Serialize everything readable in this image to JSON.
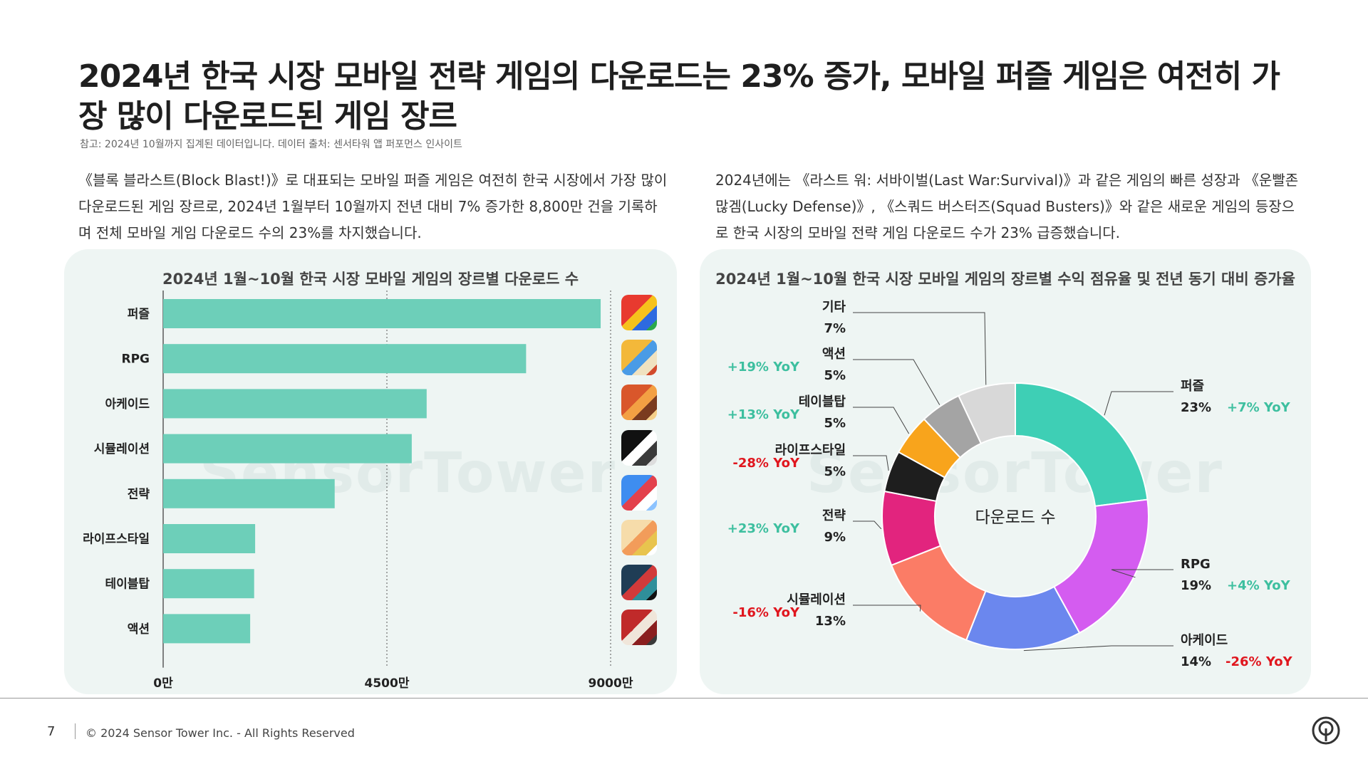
{
  "header": {
    "title": "2024년 한국 시장 모바일 전략 게임의 다운로드는 23% 증가, 모바일 퍼즐 게임은 여전히 가장 많이 다운로드된 게임 장르",
    "note": "참고: 2024년 10월까지 집계된 데이터입니다. 데이터 출처: 센서타워 앱 퍼포먼스 인사이트"
  },
  "paragraphs": {
    "left": "《블록 블라스트(Block Blast!)》로 대표되는 모바일 퍼즐 게임은 여전히 한국 시장에서 가장 많이 다운로드된 게임 장르로, 2024년 1월부터 10월까지 전년 대비 7% 증가한 8,800만 건을 기록하며 전체 모바일 게임 다운로드 수의 23%를 차지했습니다.",
    "right": "2024년에는 《라스트 워: 서바이벌(Last War:Survival)》과 같은 게임의 빠른 성장과 《운빨존많겜(Lucky Defense)》, 《스쿼드 버스터즈(Squad Busters)》와 같은 새로운 게임의 등장으로 한국 시장의 모바일 전략 게임 다운로드 수가 23% 급증했습니다."
  },
  "watermark": "SensorTower",
  "footer": {
    "page": "7",
    "copyright": "© 2024 Sensor Tower Inc. - All Rights Reserved"
  },
  "colors": {
    "bar": "#6dcfb9",
    "positive": "#3dbf9f",
    "negative": "#e0161e",
    "panel": "#eef5f3"
  },
  "chart_data": [
    {
      "type": "bar",
      "orientation": "horizontal",
      "title": "2024년 1월~10월 한국 시장 모바일 게임의 장르별 다운로드 수",
      "categories": [
        "퍼즐",
        "RPG",
        "아케이드",
        "시뮬레이션",
        "전략",
        "라이프스타일",
        "테이블탑",
        "액션"
      ],
      "values": [
        88000000,
        73000000,
        53000000,
        50000000,
        34500000,
        18500000,
        18300000,
        17500000
      ],
      "xlim": [
        0,
        90000000
      ],
      "xticks": [
        {
          "value": 0,
          "label": "0만"
        },
        {
          "value": 45000000,
          "label": "4500만"
        },
        {
          "value": 90000000,
          "label": "9000만"
        }
      ],
      "gridlines": "dashed vertical at 4500만 and 9000만",
      "icons": [
        "block-blast-icon",
        "rpg-game-icon",
        "cookie-game-icon",
        "webtoon-sim-icon",
        "squad-game-icon",
        "lifestyle-game-icon",
        "tabletop-game-icon",
        "action-game-icon"
      ]
    },
    {
      "type": "pie",
      "variant": "donut",
      "title": "2024년 1월~10월 한국 시장 모바일 게임의 장르별 수익 점유율 및 전년 동기 대비 증가율",
      "center_label": "다운로드 수",
      "slices": [
        {
          "label": "퍼즐",
          "share": 23,
          "share_label": "23%",
          "yoy": "+7% YoY",
          "color": "#3ecfb5"
        },
        {
          "label": "RPG",
          "share": 19,
          "share_label": "19%",
          "yoy": "+4% YoY",
          "color": "#d45cf0"
        },
        {
          "label": "아케이드",
          "share": 14,
          "share_label": "14%",
          "yoy": "-26% YoY",
          "color": "#6b87ee"
        },
        {
          "label": "시뮬레이션",
          "share": 13,
          "share_label": "13%",
          "yoy": "-16% YoY",
          "color": "#fb7c66"
        },
        {
          "label": "전략",
          "share": 9,
          "share_label": "9%",
          "yoy": "+23% YoY",
          "color": "#e2247e"
        },
        {
          "label": "라이프스타일",
          "share": 5,
          "share_label": "5%",
          "yoy": "-28% YoY",
          "color": "#1e1e1e"
        },
        {
          "label": "테이블탑",
          "share": 5,
          "share_label": "5%",
          "yoy": "+13% YoY",
          "color": "#f8a41c"
        },
        {
          "label": "액션",
          "share": 5,
          "share_label": "5%",
          "yoy": "+19% YoY",
          "color": "#a4a4a4"
        },
        {
          "label": "기타",
          "share": 7,
          "share_label": "7%",
          "yoy": "",
          "color": "#d8d8d8"
        }
      ]
    }
  ]
}
